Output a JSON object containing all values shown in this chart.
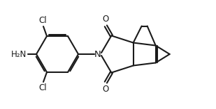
{
  "bg_color": "#ffffff",
  "line_color": "#1a1a1a",
  "line_width": 1.5,
  "font_size": 8.5,
  "atoms": {
    "H2N_label": "H₂N",
    "Cl_label": "Cl",
    "N_label": "N",
    "O_label": "O"
  }
}
